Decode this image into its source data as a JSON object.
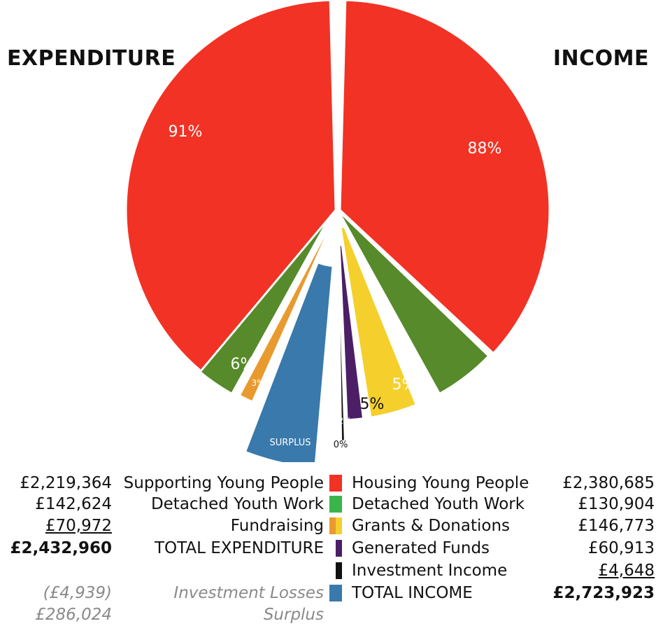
{
  "titles": {
    "expenditure": "EXPENDITURE",
    "income": "INCOME"
  },
  "chart_data": [
    {
      "type": "pie",
      "title": "EXPENDITURE",
      "slices": [
        {
          "name": "Supporting Young People",
          "percent_label": "91%",
          "value": 2219364,
          "color": "#F23224"
        },
        {
          "name": "Detached Youth Work",
          "percent_label": "6%",
          "value": 142624,
          "color": "#568A2A"
        },
        {
          "name": "Fundraising",
          "percent_label": "3%",
          "value": 70972,
          "color": "#E99A2E"
        },
        {
          "name": "Surplus",
          "percent_label": "SURPLUS",
          "value": 286024,
          "color": "#3979AB"
        }
      ]
    },
    {
      "type": "pie",
      "title": "INCOME",
      "slices": [
        {
          "name": "Housing Young People",
          "percent_label": "88%",
          "value": 2380685,
          "color": "#F23224"
        },
        {
          "name": "Detached Youth Work",
          "percent_label": "5%",
          "value": 130904,
          "color": "#568A2A"
        },
        {
          "name": "Grants & Donations",
          "percent_label": "5%",
          "value": 146773,
          "color": "#F5D02C"
        },
        {
          "name": "Generated Funds",
          "percent_label": "2%",
          "value": 60913,
          "color": "#4B1E66"
        },
        {
          "name": "Investment Income",
          "percent_label": "0%",
          "value": 4648,
          "color": "#111111"
        }
      ]
    }
  ],
  "legend": {
    "expenditure": [
      {
        "value": "£2,219,364",
        "label": "Supporting Young People"
      },
      {
        "value": "£142,624",
        "label": "Detached Youth Work"
      },
      {
        "value": "£70,972",
        "label": "Fundraising"
      },
      {
        "value": "£2,432,960",
        "label": "TOTAL EXPENDITURE"
      },
      {
        "value": "(£4,939)",
        "label": "Investment Losses"
      },
      {
        "value": "£286,024",
        "label": "Surplus"
      }
    ],
    "income": [
      {
        "label": "Housing Young People",
        "value": "£2,380,685"
      },
      {
        "label": "Detached Youth Work",
        "value": "£130,904"
      },
      {
        "label": "Grants & Donations",
        "value": "£146,773"
      },
      {
        "label": "Generated Funds",
        "value": "£60,913"
      },
      {
        "label": "Investment Income",
        "value": "£4,648"
      },
      {
        "label": "TOTAL INCOME",
        "value": "£2,723,923"
      }
    ]
  },
  "colors": {
    "red": "#F23224",
    "green": "#568A2A",
    "legend_green": "#3BB44A",
    "orange": "#E99A2E",
    "yellow": "#F5D02C",
    "purple": "#4B1E66",
    "black": "#111111",
    "blue": "#3979AB"
  }
}
